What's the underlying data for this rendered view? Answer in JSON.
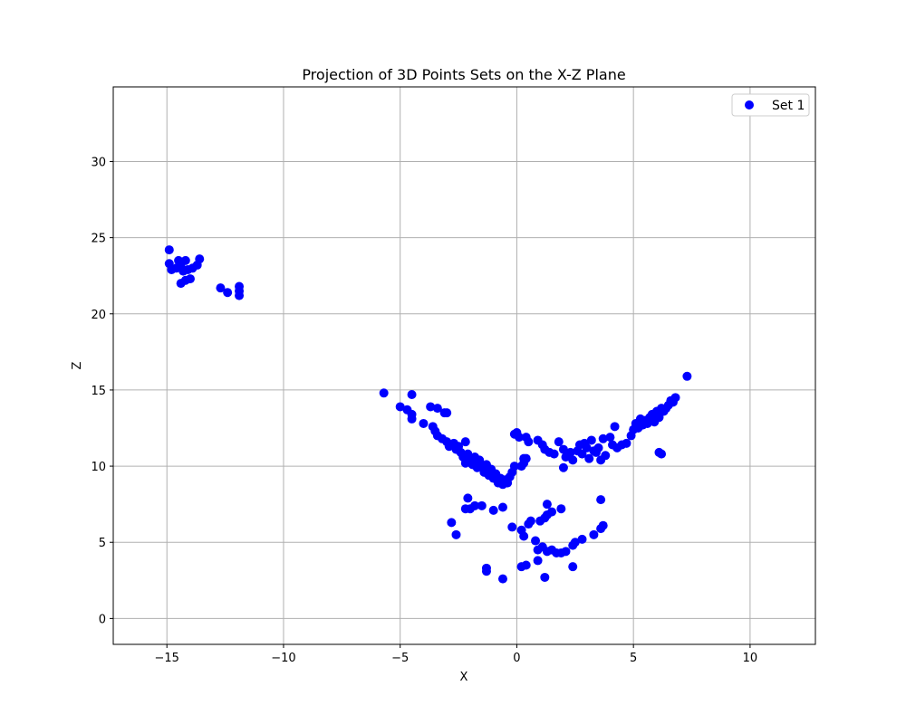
{
  "chart_data": {
    "type": "scatter",
    "title": "Projection of 3D Points Sets on the X-Z Plane",
    "xlabel": "X",
    "ylabel": "Z",
    "xlim": [
      -17.3,
      12.8
    ],
    "ylim": [
      -1.7,
      34.9
    ],
    "xticks": [
      -15,
      -10,
      -5,
      0,
      5,
      10
    ],
    "yticks": [
      0,
      5,
      10,
      15,
      20,
      25,
      30
    ],
    "grid": true,
    "legend_position": "upper right",
    "series": [
      {
        "name": "Set 1",
        "color": "#0000ff",
        "points": [
          [
            -14.9,
            24.2
          ],
          [
            -14.9,
            23.3
          ],
          [
            -14.8,
            22.9
          ],
          [
            -14.5,
            23.5
          ],
          [
            -14.4,
            23.1
          ],
          [
            -14.2,
            23.5
          ],
          [
            -14.3,
            22.8
          ],
          [
            -14.1,
            22.9
          ],
          [
            -14.4,
            22.0
          ],
          [
            -14.2,
            22.2
          ],
          [
            -14.0,
            22.3
          ],
          [
            -13.9,
            23.0
          ],
          [
            -13.6,
            23.6
          ],
          [
            -13.7,
            23.2
          ],
          [
            -14.6,
            23.0
          ],
          [
            -12.7,
            21.7
          ],
          [
            -12.4,
            21.4
          ],
          [
            -11.9,
            21.8
          ],
          [
            -11.9,
            21.5
          ],
          [
            -11.9,
            21.2
          ],
          [
            -5.7,
            14.8
          ],
          [
            -5.0,
            13.9
          ],
          [
            -4.7,
            13.7
          ],
          [
            -4.5,
            14.7
          ],
          [
            -4.5,
            13.4
          ],
          [
            -4.5,
            13.1
          ],
          [
            -4.0,
            12.8
          ],
          [
            -3.7,
            13.9
          ],
          [
            -3.4,
            13.8
          ],
          [
            -3.1,
            13.5
          ],
          [
            -3.0,
            13.5
          ],
          [
            -3.6,
            12.6
          ],
          [
            -3.5,
            12.3
          ],
          [
            -3.4,
            12.0
          ],
          [
            -3.2,
            11.8
          ],
          [
            -3.0,
            11.6
          ],
          [
            -2.9,
            11.3
          ],
          [
            -2.7,
            11.5
          ],
          [
            -2.6,
            11.1
          ],
          [
            -2.5,
            11.3
          ],
          [
            -2.4,
            10.9
          ],
          [
            -2.2,
            11.6
          ],
          [
            -2.3,
            10.6
          ],
          [
            -2.1,
            10.8
          ],
          [
            -2.2,
            10.2
          ],
          [
            -2.0,
            10.4
          ],
          [
            -1.9,
            10.1
          ],
          [
            -1.8,
            10.6
          ],
          [
            -1.6,
            10.4
          ],
          [
            -1.7,
            9.9
          ],
          [
            -1.5,
            10.0
          ],
          [
            -1.4,
            9.6
          ],
          [
            -1.3,
            10.1
          ],
          [
            -1.2,
            9.4
          ],
          [
            -1.1,
            9.8
          ],
          [
            -1.0,
            9.2
          ],
          [
            -0.9,
            9.5
          ],
          [
            -0.8,
            8.9
          ],
          [
            -0.7,
            9.2
          ],
          [
            -0.6,
            8.8
          ],
          [
            -0.5,
            9.1
          ],
          [
            -0.4,
            8.9
          ],
          [
            -0.3,
            9.3
          ],
          [
            -0.2,
            9.6
          ],
          [
            -0.1,
            10.0
          ],
          [
            0.2,
            10.0
          ],
          [
            0.3,
            10.2
          ],
          [
            0.3,
            10.5
          ],
          [
            0.4,
            10.5
          ],
          [
            -0.1,
            12.1
          ],
          [
            0.0,
            12.2
          ],
          [
            0.1,
            11.9
          ],
          [
            0.4,
            11.9
          ],
          [
            0.5,
            11.6
          ],
          [
            0.9,
            11.7
          ],
          [
            1.1,
            11.4
          ],
          [
            1.2,
            11.1
          ],
          [
            1.4,
            10.9
          ],
          [
            1.6,
            10.8
          ],
          [
            1.8,
            11.6
          ],
          [
            2.0,
            11.1
          ],
          [
            2.1,
            10.6
          ],
          [
            2.0,
            9.9
          ],
          [
            2.3,
            10.9
          ],
          [
            2.4,
            10.4
          ],
          [
            2.6,
            11.0
          ],
          [
            2.7,
            11.4
          ],
          [
            2.8,
            10.8
          ],
          [
            2.9,
            11.5
          ],
          [
            3.0,
            11.2
          ],
          [
            3.1,
            10.5
          ],
          [
            3.2,
            11.7
          ],
          [
            3.3,
            11.0
          ],
          [
            3.4,
            10.9
          ],
          [
            3.5,
            11.2
          ],
          [
            3.6,
            10.4
          ],
          [
            3.7,
            11.8
          ],
          [
            3.8,
            10.7
          ],
          [
            4.0,
            11.9
          ],
          [
            4.1,
            11.4
          ],
          [
            4.2,
            12.6
          ],
          [
            4.3,
            11.2
          ],
          [
            4.5,
            11.4
          ],
          [
            4.7,
            11.5
          ],
          [
            4.9,
            12.0
          ],
          [
            5.0,
            12.4
          ],
          [
            5.1,
            12.8
          ],
          [
            5.2,
            12.5
          ],
          [
            5.3,
            13.1
          ],
          [
            5.4,
            12.7
          ],
          [
            5.5,
            13.0
          ],
          [
            5.6,
            12.8
          ],
          [
            5.7,
            13.2
          ],
          [
            5.8,
            13.4
          ],
          [
            5.9,
            12.9
          ],
          [
            6.0,
            13.6
          ],
          [
            6.1,
            13.2
          ],
          [
            6.2,
            13.8
          ],
          [
            6.3,
            13.6
          ],
          [
            6.4,
            13.8
          ],
          [
            6.5,
            14.0
          ],
          [
            6.6,
            14.3
          ],
          [
            6.7,
            14.2
          ],
          [
            6.8,
            14.5
          ],
          [
            6.1,
            10.9
          ],
          [
            6.2,
            10.8
          ],
          [
            7.3,
            15.9
          ],
          [
            -2.2,
            7.2
          ],
          [
            -2.1,
            7.9
          ],
          [
            -2.0,
            7.2
          ],
          [
            -1.8,
            7.4
          ],
          [
            -1.5,
            7.4
          ],
          [
            -1.0,
            7.1
          ],
          [
            -0.6,
            7.3
          ],
          [
            -2.8,
            6.3
          ],
          [
            -2.6,
            5.5
          ],
          [
            -1.3,
            3.3
          ],
          [
            -1.3,
            3.1
          ],
          [
            -0.6,
            2.6
          ],
          [
            -0.2,
            6.0
          ],
          [
            0.2,
            5.8
          ],
          [
            0.3,
            5.4
          ],
          [
            0.5,
            6.2
          ],
          [
            0.6,
            6.4
          ],
          [
            0.8,
            5.1
          ],
          [
            0.9,
            4.5
          ],
          [
            1.0,
            6.4
          ],
          [
            1.2,
            6.6
          ],
          [
            1.3,
            7.5
          ],
          [
            1.3,
            6.8
          ],
          [
            1.5,
            7.0
          ],
          [
            1.9,
            7.2
          ],
          [
            1.1,
            4.7
          ],
          [
            1.3,
            4.4
          ],
          [
            1.5,
            4.5
          ],
          [
            1.7,
            4.3
          ],
          [
            1.9,
            4.3
          ],
          [
            2.1,
            4.4
          ],
          [
            2.4,
            4.8
          ],
          [
            2.5,
            5.0
          ],
          [
            2.8,
            5.2
          ],
          [
            3.3,
            5.5
          ],
          [
            3.6,
            5.9
          ],
          [
            3.7,
            6.1
          ],
          [
            3.6,
            7.8
          ],
          [
            0.2,
            3.4
          ],
          [
            0.4,
            3.5
          ],
          [
            0.9,
            3.8
          ],
          [
            1.2,
            2.7
          ],
          [
            2.4,
            3.4
          ]
        ]
      }
    ]
  }
}
